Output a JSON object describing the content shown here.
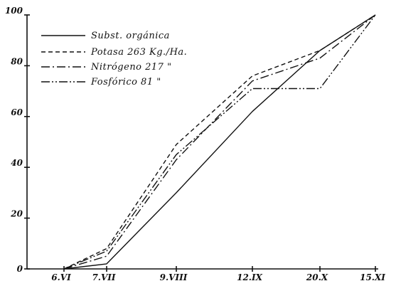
{
  "chart_data": {
    "type": "line",
    "categories": [
      "6.VI",
      "7.VII",
      "9.VIII",
      "12.IX",
      "20.X",
      "15.XI"
    ],
    "ylim": [
      0,
      100
    ],
    "yticks": [
      "0",
      "20",
      "40",
      "60",
      "80",
      "100"
    ],
    "grid": false,
    "legend_position": "top-left",
    "series": [
      {
        "name": "Subst. orgánica",
        "style": "solid",
        "values": [
          0,
          2,
          30,
          62,
          86,
          100
        ]
      },
      {
        "name": "Potasa 263 Kg./Ha.",
        "style": "dash",
        "values": [
          0,
          8,
          49,
          76,
          86,
          100
        ]
      },
      {
        "name": "Nitrógeno 217 \"",
        "style": "dashdot",
        "values": [
          0,
          5,
          43,
          74,
          83,
          100
        ]
      },
      {
        "name": "Fosfórico 81 \"",
        "style": "dashdotdot",
        "values": [
          0,
          7,
          45,
          71,
          71,
          100
        ]
      }
    ]
  }
}
